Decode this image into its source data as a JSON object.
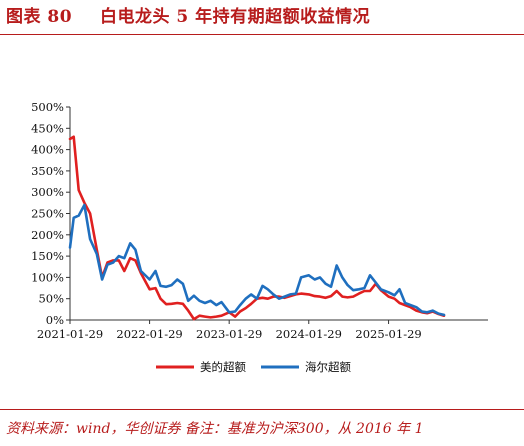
{
  "header": {
    "figure_label": "图表 80",
    "title": "白电龙头 5 年持有期超额收益情况"
  },
  "source": "资料来源：wind，华创证券 备注：基准为沪深300，从 2016 年 1",
  "colors": {
    "red_series": "#e02020",
    "blue_series": "#1f6fbf",
    "accent": "#b71c1c"
  },
  "chart_data": {
    "type": "line",
    "x_tick_labels": [
      "2021-01-29",
      "2022-01-29",
      "2023-01-29",
      "2024-01-29",
      "2025-01-29"
    ],
    "y_tick_labels": [
      "0%",
      "50%",
      "100%",
      "150%",
      "200%",
      "250%",
      "300%",
      "350%",
      "400%",
      "450%",
      "500%"
    ],
    "ylim": [
      0,
      500
    ],
    "xlim": [
      "2021-01-29",
      "2026-04-30"
    ],
    "grid": false,
    "legend_position": "bottom",
    "series": [
      {
        "name": "美的超额",
        "color": "#e02020",
        "points": [
          [
            "2021-01-29",
            425
          ],
          [
            "2021-02-15",
            430
          ],
          [
            "2021-03-10",
            305
          ],
          [
            "2021-04-05",
            275
          ],
          [
            "2021-05-01",
            250
          ],
          [
            "2021-06-01",
            165
          ],
          [
            "2021-06-25",
            100
          ],
          [
            "2021-07-20",
            135
          ],
          [
            "2021-08-15",
            140
          ],
          [
            "2021-09-10",
            140
          ],
          [
            "2021-10-05",
            115
          ],
          [
            "2021-11-01",
            145
          ],
          [
            "2021-11-25",
            140
          ],
          [
            "2021-12-20",
            110
          ],
          [
            "2022-01-29",
            72
          ],
          [
            "2022-02-25",
            75
          ],
          [
            "2022-03-20",
            50
          ],
          [
            "2022-04-15",
            37
          ],
          [
            "2022-05-10",
            38
          ],
          [
            "2022-06-05",
            40
          ],
          [
            "2022-07-01",
            38
          ],
          [
            "2022-07-25",
            22
          ],
          [
            "2022-08-20",
            2
          ],
          [
            "2022-09-15",
            10
          ],
          [
            "2022-10-10",
            8
          ],
          [
            "2022-11-05",
            6
          ],
          [
            "2022-12-01",
            8
          ],
          [
            "2022-12-25",
            10
          ],
          [
            "2023-01-29",
            18
          ],
          [
            "2023-02-25",
            8
          ],
          [
            "2023-03-20",
            20
          ],
          [
            "2023-04-15",
            28
          ],
          [
            "2023-05-10",
            38
          ],
          [
            "2023-06-05",
            50
          ],
          [
            "2023-07-01",
            52
          ],
          [
            "2023-07-25",
            50
          ],
          [
            "2023-08-20",
            55
          ],
          [
            "2023-09-15",
            55
          ],
          [
            "2023-10-10",
            52
          ],
          [
            "2023-11-05",
            56
          ],
          [
            "2023-12-01",
            60
          ],
          [
            "2023-12-25",
            62
          ],
          [
            "2024-01-29",
            60
          ],
          [
            "2024-02-25",
            56
          ],
          [
            "2024-03-20",
            55
          ],
          [
            "2024-04-15",
            52
          ],
          [
            "2024-05-10",
            56
          ],
          [
            "2024-06-05",
            68
          ],
          [
            "2024-07-01",
            55
          ],
          [
            "2024-07-25",
            53
          ],
          [
            "2024-08-20",
            55
          ],
          [
            "2024-09-15",
            62
          ],
          [
            "2024-10-10",
            68
          ],
          [
            "2024-11-05",
            68
          ],
          [
            "2024-12-01",
            85
          ],
          [
            "2024-12-25",
            70
          ],
          [
            "2025-01-29",
            55
          ],
          [
            "2025-02-25",
            50
          ],
          [
            "2025-03-20",
            40
          ],
          [
            "2025-04-15",
            35
          ],
          [
            "2025-05-10",
            30
          ],
          [
            "2025-06-05",
            22
          ],
          [
            "2025-07-01",
            18
          ],
          [
            "2025-07-25",
            16
          ],
          [
            "2025-08-20",
            20
          ],
          [
            "2025-09-15",
            14
          ],
          [
            "2025-10-10",
            10
          ]
        ]
      },
      {
        "name": "海尔超额",
        "color": "#1f6fbf",
        "points": [
          [
            "2021-01-29",
            170
          ],
          [
            "2021-02-15",
            240
          ],
          [
            "2021-03-10",
            245
          ],
          [
            "2021-04-05",
            270
          ],
          [
            "2021-05-01",
            190
          ],
          [
            "2021-06-01",
            155
          ],
          [
            "2021-06-25",
            95
          ],
          [
            "2021-07-20",
            130
          ],
          [
            "2021-08-15",
            135
          ],
          [
            "2021-09-10",
            150
          ],
          [
            "2021-10-05",
            145
          ],
          [
            "2021-11-01",
            180
          ],
          [
            "2021-11-25",
            165
          ],
          [
            "2021-12-20",
            115
          ],
          [
            "2022-01-29",
            95
          ],
          [
            "2022-02-25",
            115
          ],
          [
            "2022-03-20",
            80
          ],
          [
            "2022-04-15",
            78
          ],
          [
            "2022-05-10",
            82
          ],
          [
            "2022-06-05",
            95
          ],
          [
            "2022-07-01",
            85
          ],
          [
            "2022-07-25",
            45
          ],
          [
            "2022-08-20",
            57
          ],
          [
            "2022-09-15",
            45
          ],
          [
            "2022-10-10",
            40
          ],
          [
            "2022-11-05",
            45
          ],
          [
            "2022-12-01",
            35
          ],
          [
            "2022-12-25",
            42
          ],
          [
            "2023-01-29",
            18
          ],
          [
            "2023-02-25",
            20
          ],
          [
            "2023-03-20",
            35
          ],
          [
            "2023-04-15",
            50
          ],
          [
            "2023-05-10",
            60
          ],
          [
            "2023-06-05",
            50
          ],
          [
            "2023-07-01",
            80
          ],
          [
            "2023-07-25",
            72
          ],
          [
            "2023-08-20",
            60
          ],
          [
            "2023-09-15",
            50
          ],
          [
            "2023-10-10",
            55
          ],
          [
            "2023-11-05",
            60
          ],
          [
            "2023-12-01",
            62
          ],
          [
            "2023-12-25",
            100
          ],
          [
            "2024-01-29",
            105
          ],
          [
            "2024-02-25",
            95
          ],
          [
            "2024-03-20",
            100
          ],
          [
            "2024-04-15",
            85
          ],
          [
            "2024-05-10",
            78
          ],
          [
            "2024-06-05",
            128
          ],
          [
            "2024-07-01",
            100
          ],
          [
            "2024-07-25",
            82
          ],
          [
            "2024-08-20",
            70
          ],
          [
            "2024-09-15",
            72
          ],
          [
            "2024-10-10",
            75
          ],
          [
            "2024-11-05",
            105
          ],
          [
            "2024-12-01",
            88
          ],
          [
            "2024-12-25",
            72
          ],
          [
            "2025-01-29",
            65
          ],
          [
            "2025-02-25",
            58
          ],
          [
            "2025-03-20",
            72
          ],
          [
            "2025-04-15",
            40
          ],
          [
            "2025-05-10",
            35
          ],
          [
            "2025-06-05",
            30
          ],
          [
            "2025-07-01",
            20
          ],
          [
            "2025-07-25",
            18
          ],
          [
            "2025-08-20",
            22
          ],
          [
            "2025-09-15",
            15
          ],
          [
            "2025-10-10",
            12
          ]
        ]
      }
    ]
  }
}
